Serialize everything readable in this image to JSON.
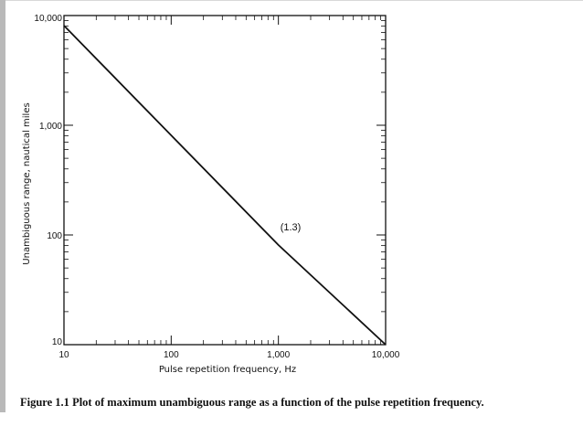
{
  "chart_data": {
    "type": "line",
    "xscale": "log",
    "yscale": "log",
    "xlim": [
      10,
      10000
    ],
    "ylim": [
      10,
      10000
    ],
    "xticks": [
      10,
      100,
      1000,
      10000
    ],
    "xticklabels": [
      "10",
      "100",
      "1,000",
      "10,000"
    ],
    "yticks": [
      10,
      100,
      1000,
      10000
    ],
    "yticklabels": [
      "10",
      "100",
      "1,000",
      "10,000"
    ],
    "xlabel": "Pulse repetition frequency, Hz",
    "ylabel": "Unambiguous range, nautical miles",
    "series": [
      {
        "x": [
          10,
          100,
          1000,
          10000
        ],
        "y": [
          8090,
          809,
          80.9,
          8.09
        ]
      }
    ],
    "annotations": [
      {
        "text": "(1.3)",
        "x": 1300,
        "y": 110
      }
    ],
    "grid": false,
    "legend": "none"
  },
  "caption": {
    "label": "Figure 1.1",
    "text": "Plot of maximum unambiguous range as a function of the pulse repetition frequency."
  },
  "colors": {
    "ink": "#111111",
    "frame_strip": "#b9b9b9"
  }
}
